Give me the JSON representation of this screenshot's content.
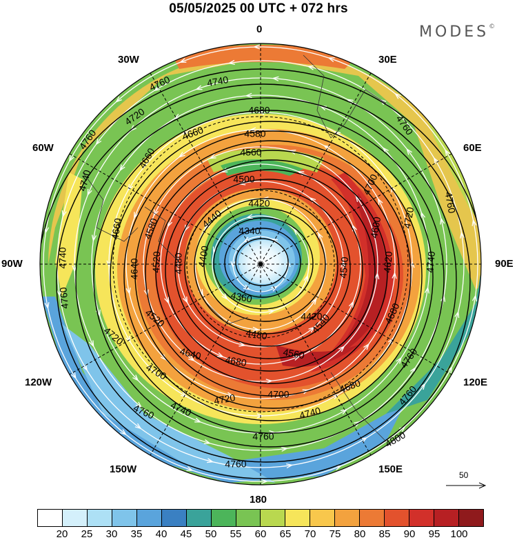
{
  "title": "05/05/2025  00 UTC  + 072 hrs",
  "brand": "MODES",
  "brand_mark": "©",
  "lon_labels": {
    "n": "0",
    "s": "180",
    "e": "90E",
    "w": "90W",
    "ne": "30E",
    "nne": "60E",
    "nw": "30W",
    "nnw": "60W",
    "se": "150E",
    "sse": "120E",
    "sw": "150W",
    "ssw": "120W"
  },
  "vector_ref_label": "50",
  "contour_labels": [
    "4340",
    "4360",
    "4400",
    "4420",
    "4440",
    "4480",
    "4500",
    "4520",
    "4540",
    "4560",
    "4580",
    "4600",
    "4620",
    "4640",
    "4660",
    "4680",
    "4700",
    "4720",
    "4740",
    "4760",
    "4780",
    "4800"
  ],
  "colorbar": {
    "colors": [
      "#ffffff",
      "#d4f0fb",
      "#ade0f5",
      "#7fc4ea",
      "#5aa4dc",
      "#3a80c2",
      "#3aa39a",
      "#4cb55a",
      "#79c453",
      "#b9d84f",
      "#f6e55a",
      "#f8c74c",
      "#f3a23e",
      "#ec7a35",
      "#e3522d",
      "#d2302a",
      "#b72023",
      "#8f1a1c"
    ],
    "ticks": [
      "20",
      "25",
      "30",
      "35",
      "40",
      "45",
      "50",
      "55",
      "60",
      "65",
      "70",
      "75",
      "80",
      "85",
      "90",
      "95",
      "100"
    ]
  },
  "icons": {
    "center_marker": "pole-dot-icon",
    "reference_arrow": "arrow-right-icon"
  }
}
